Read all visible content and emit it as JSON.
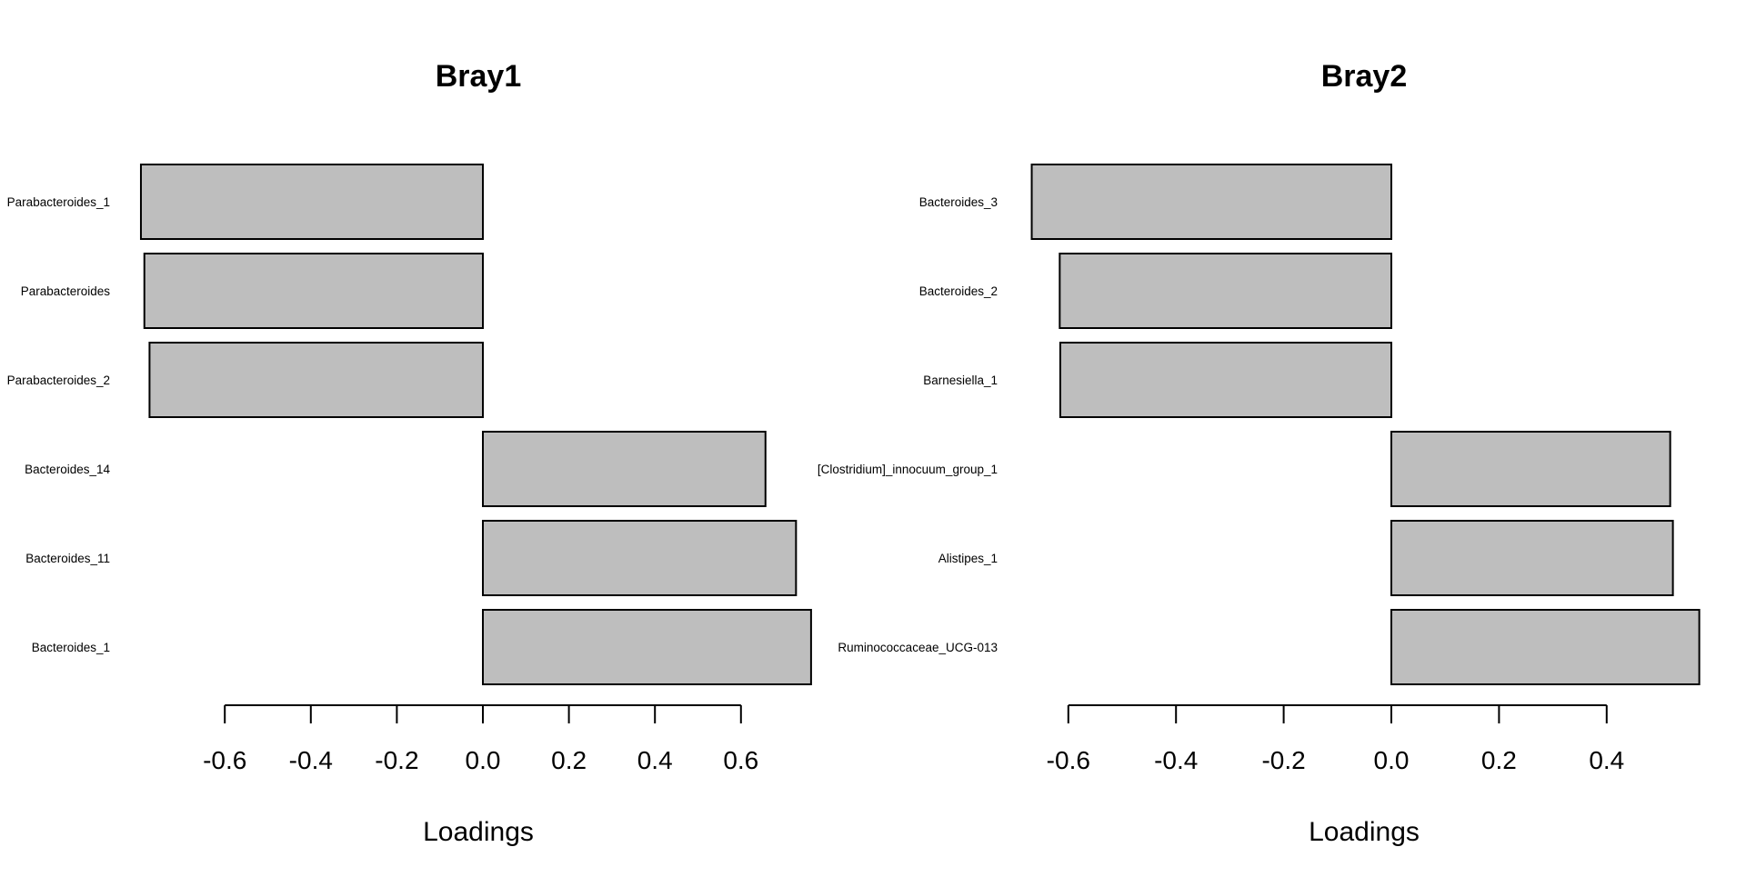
{
  "chart_data": [
    {
      "type": "bar",
      "orientation": "horizontal",
      "title": "Bray1",
      "xlabel": "Loadings",
      "ylabel": "",
      "categories": [
        "Parabacteroides_1",
        "Parabacteroides",
        "Parabacteroides_2",
        "Bacteroides_14",
        "Bacteroides_11",
        "Bacteroides_1"
      ],
      "values": [
        -0.795,
        -0.787,
        -0.775,
        0.657,
        0.728,
        0.763
      ],
      "xticks": [
        -0.6,
        -0.4,
        -0.2,
        0.0,
        0.2,
        0.4,
        0.6
      ],
      "xtick_labels": [
        "-0.6",
        "-0.4",
        "-0.2",
        "0.0",
        "0.2",
        "0.4",
        "0.6"
      ],
      "xlim": [
        -0.8,
        0.77
      ],
      "grid": false,
      "bar_color": "#bebebe"
    },
    {
      "type": "bar",
      "orientation": "horizontal",
      "title": "Bray2",
      "xlabel": "Loadings",
      "ylabel": "",
      "categories": [
        "Bacteroides_3",
        "Bacteroides_2",
        "Barnesiella_1",
        "[Clostridium]_innocuum_group_1",
        "Alistipes_1",
        "Ruminococcaceae_UCG-013"
      ],
      "values": [
        -0.668,
        -0.616,
        -0.615,
        0.518,
        0.523,
        0.572
      ],
      "xticks": [
        -0.6,
        -0.4,
        -0.2,
        0.0,
        0.2,
        0.4
      ],
      "xtick_labels": [
        "-0.6",
        "-0.4",
        "-0.2",
        "0.0",
        "0.2",
        "0.4"
      ],
      "xlim": [
        -0.68,
        0.58
      ],
      "grid": false,
      "bar_color": "#bebebe"
    }
  ]
}
